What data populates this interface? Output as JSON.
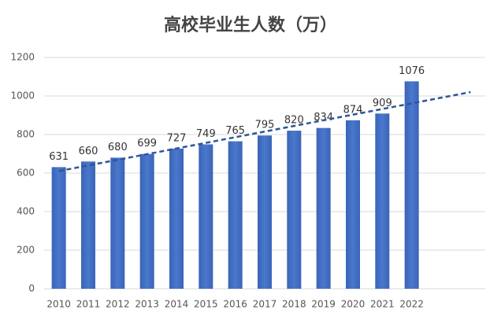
{
  "chart_data": {
    "type": "bar",
    "title": "高校毕业生人数（万）",
    "categories": [
      "2010",
      "2011",
      "2012",
      "2013",
      "2014",
      "2015",
      "2016",
      "2017",
      "2018",
      "2019",
      "2020",
      "2021",
      "2022"
    ],
    "values": [
      631,
      660,
      680,
      699,
      727,
      749,
      765,
      795,
      820,
      834,
      874,
      909,
      1076
    ],
    "color": "#4472c4",
    "ylim": [
      0,
      1200
    ],
    "yticks": [
      0,
      200,
      400,
      600,
      800,
      1000,
      1200
    ],
    "grid": true,
    "trendline": "linear",
    "trendline_color": "#2f5597"
  }
}
